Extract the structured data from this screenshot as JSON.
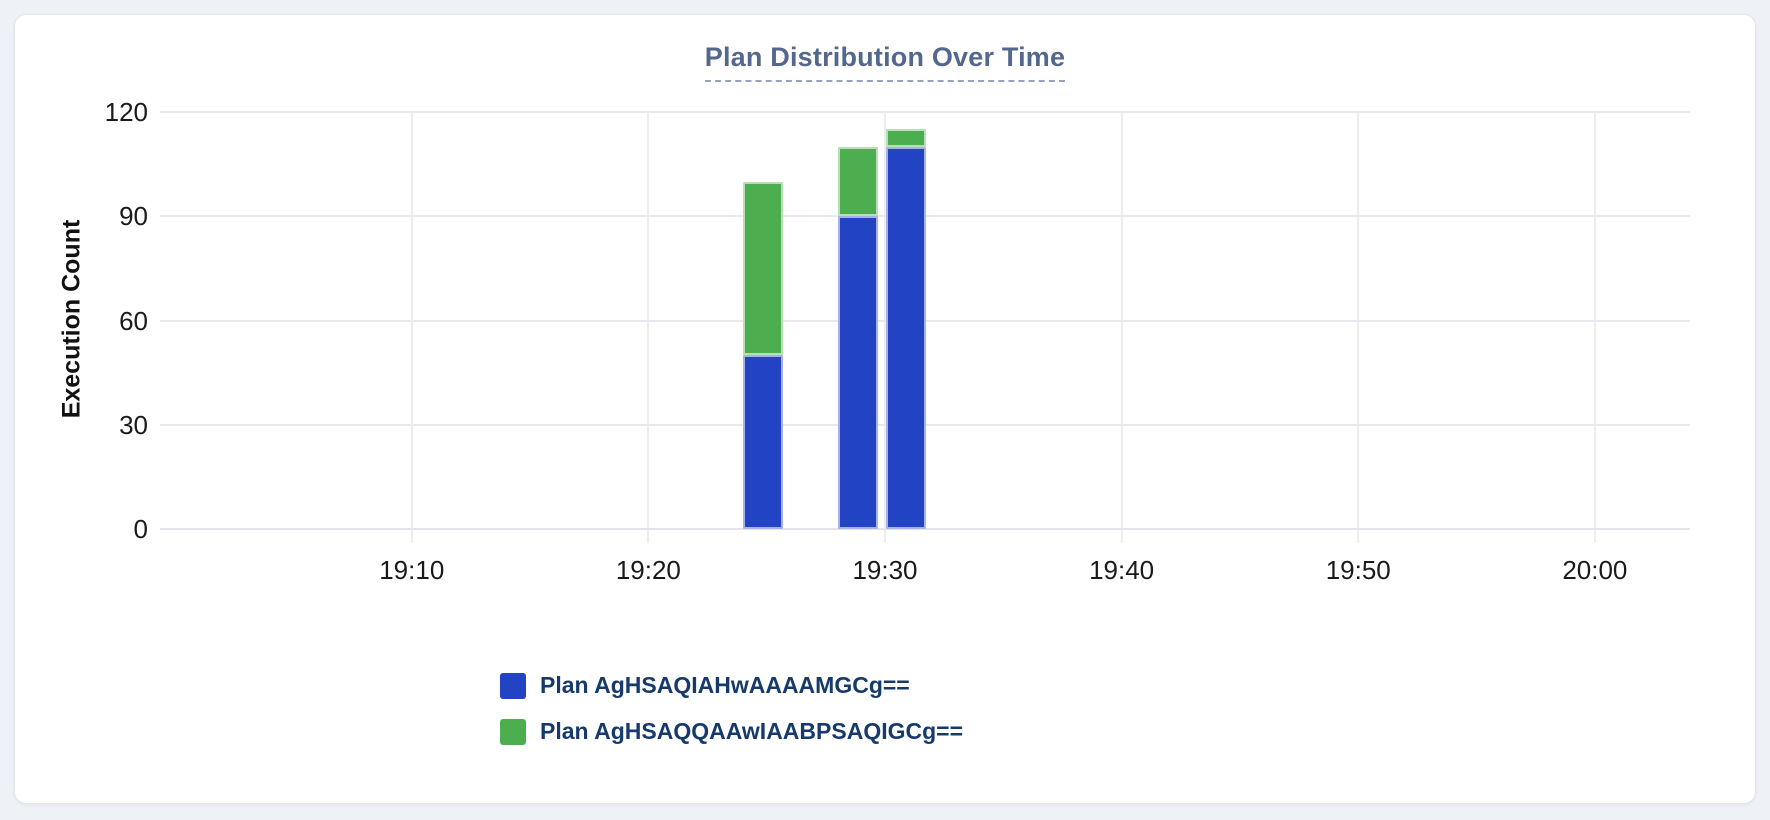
{
  "page_background": "#eef1f6",
  "card": {
    "background": "#ffffff",
    "border_color": "#e3e6ec"
  },
  "chart_data": {
    "type": "bar",
    "stacked": true,
    "title": "Plan Distribution Over Time",
    "title_color": "#54678c",
    "ylabel": "Execution Count",
    "xlabel": "",
    "ylim": [
      0,
      120
    ],
    "y_ticks": [
      0,
      30,
      60,
      90,
      120
    ],
    "grid": true,
    "legend_position": "bottom-left",
    "x_axis": {
      "unit": "minutes after 19:00",
      "domain_min_minutes": -0.64,
      "domain_max_minutes": 64.02,
      "ticks": [
        {
          "label": "19:10",
          "minutes": 10
        },
        {
          "label": "19:20",
          "minutes": 20
        },
        {
          "label": "19:30",
          "minutes": 30
        },
        {
          "label": "19:40",
          "minutes": 40
        },
        {
          "label": "19:50",
          "minutes": 50
        },
        {
          "label": "20:00",
          "minutes": 60
        }
      ]
    },
    "bar_width_minutes": 1.69,
    "categories": [
      "19:25",
      "19:29",
      "19:31"
    ],
    "bar_centers_minutes": [
      24.84,
      28.86,
      30.89
    ],
    "series": [
      {
        "name": "Plan AgHSAQIAHwAAAAMGCg==",
        "color": "#2243c4",
        "values": [
          50,
          90,
          110
        ]
      },
      {
        "name": "Plan AgHSAQQAAwIAABPSAQIGCg==",
        "color": "#4cae4f",
        "values": [
          50,
          20,
          5
        ]
      }
    ],
    "totals": [
      100,
      110,
      115
    ]
  },
  "legend": {
    "text_color": "#173a6d",
    "items": [
      {
        "label": "Plan AgHSAQIAHwAAAAMGCg==",
        "color": "#2243c4"
      },
      {
        "label": "Plan AgHSAQQAAwIAABPSAQIGCg==",
        "color": "#4cae4f"
      }
    ]
  }
}
